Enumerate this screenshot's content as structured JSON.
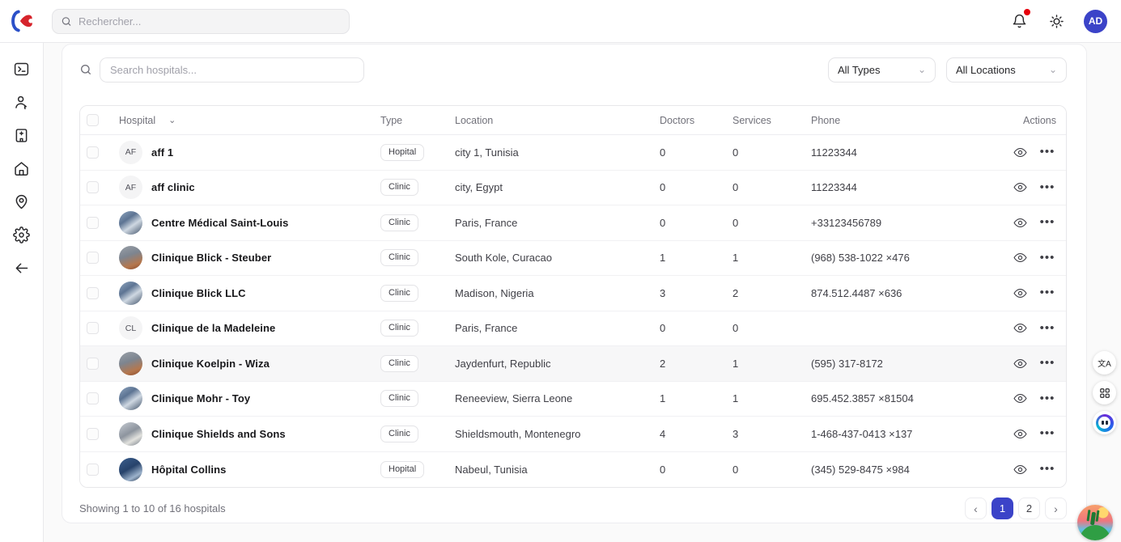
{
  "topbar": {
    "search_placeholder": "Rechercher...",
    "avatar_initials": "AD"
  },
  "sidebar": {
    "items": [
      {
        "name": "terminal"
      },
      {
        "name": "user"
      },
      {
        "name": "hospital-building"
      },
      {
        "name": "home"
      },
      {
        "name": "map-pin"
      },
      {
        "name": "settings"
      },
      {
        "name": "collapse-back"
      }
    ]
  },
  "toolbar": {
    "search_placeholder": "Search hospitals...",
    "type_filter_value": "All Types",
    "location_filter_value": "All Locations"
  },
  "table": {
    "columns": {
      "hospital": "Hospital",
      "type": "Type",
      "location": "Location",
      "doctors": "Doctors",
      "services": "Services",
      "phone": "Phone",
      "actions": "Actions"
    },
    "rows": [
      {
        "avatar_kind": "initials",
        "avatar": "AF",
        "name": "aff 1",
        "type": "Hopital",
        "location": "city 1, Tunisia",
        "doctors": "0",
        "services": "0",
        "phone": "11223344",
        "highlight": false
      },
      {
        "avatar_kind": "initials",
        "avatar": "AF",
        "name": "aff clinic",
        "type": "Clinic",
        "location": "city, Egypt",
        "doctors": "0",
        "services": "0",
        "phone": "11223344",
        "highlight": false
      },
      {
        "avatar_kind": "photo-blue",
        "avatar": "",
        "name": "Centre Médical Saint-Louis",
        "type": "Clinic",
        "location": "Paris, France",
        "doctors": "0",
        "services": "0",
        "phone": "+33123456789",
        "highlight": false
      },
      {
        "avatar_kind": "photo-warm",
        "avatar": "",
        "name": "Clinique Blick - Steuber",
        "type": "Clinic",
        "location": "South Kole, Curacao",
        "doctors": "1",
        "services": "1",
        "phone": "(968) 538-1022 ×476",
        "highlight": false
      },
      {
        "avatar_kind": "photo-blue",
        "avatar": "",
        "name": "Clinique Blick LLC",
        "type": "Clinic",
        "location": "Madison, Nigeria",
        "doctors": "3",
        "services": "2",
        "phone": "874.512.4487 ×636",
        "highlight": false
      },
      {
        "avatar_kind": "initials",
        "avatar": "CL",
        "name": "Clinique de la Madeleine",
        "type": "Clinic",
        "location": "Paris, France",
        "doctors": "0",
        "services": "0",
        "phone": "",
        "highlight": false
      },
      {
        "avatar_kind": "photo-warm",
        "avatar": "",
        "name": "Clinique Koelpin - Wiza",
        "type": "Clinic",
        "location": "Jaydenfurt, Republic",
        "doctors": "2",
        "services": "1",
        "phone": "(595) 317-8172",
        "highlight": true
      },
      {
        "avatar_kind": "photo-blue",
        "avatar": "",
        "name": "Clinique Mohr - Toy",
        "type": "Clinic",
        "location": "Reneeview, Sierra Leone",
        "doctors": "1",
        "services": "1",
        "phone": "695.452.3857 ×81504",
        "highlight": false
      },
      {
        "avatar_kind": "photo-gray",
        "avatar": "",
        "name": "Clinique Shields and Sons",
        "type": "Clinic",
        "location": "Shieldsmouth, Montenegro",
        "doctors": "4",
        "services": "3",
        "phone": "1-468-437-0413 ×137",
        "highlight": false
      },
      {
        "avatar_kind": "photo-dark",
        "avatar": "",
        "name": "Hôpital Collins",
        "type": "Hopital",
        "location": "Nabeul, Tunisia",
        "doctors": "0",
        "services": "0",
        "phone": "(345) 529-8475 ×984",
        "highlight": false
      }
    ]
  },
  "footer": {
    "summary": "Showing 1 to 10 of 16 hospitals",
    "pages": [
      "1",
      "2"
    ],
    "active_page": "1"
  },
  "icons": {
    "sort": "⌄",
    "dropdown": "⌄",
    "prev": "‹",
    "next": "›",
    "more": "•••",
    "translate": "文A"
  },
  "colors": {
    "accent": "#3b43c8",
    "notification": "#e7000b",
    "logo_blue": "#2b50c8",
    "logo_red": "#d6242c"
  }
}
